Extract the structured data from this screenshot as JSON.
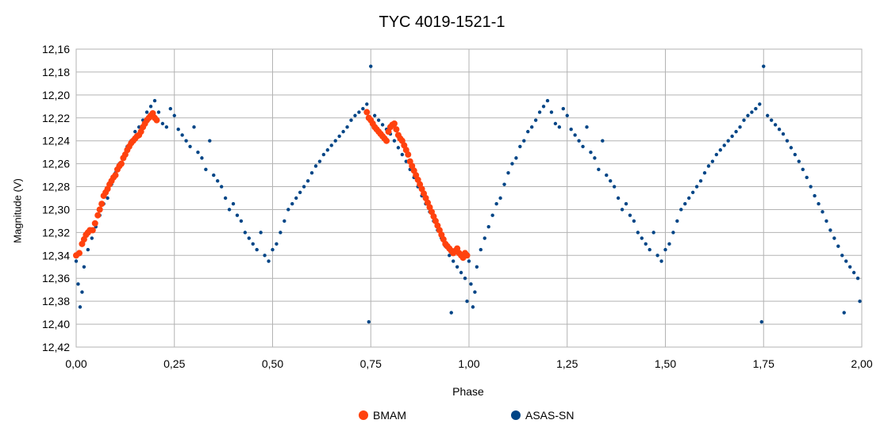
{
  "chart_data": {
    "type": "scatter",
    "title": "TYC 4019-1521-1",
    "xlabel": "Phase",
    "ylabel": "Magnitude (V)",
    "xlim": [
      0,
      2
    ],
    "ylim": [
      12.16,
      12.42
    ],
    "y_inverted": true,
    "grid": true,
    "legend_position": "bottom",
    "x_ticks": [
      "0,00",
      "0,25",
      "0,50",
      "0,75",
      "1,00",
      "1,25",
      "1,50",
      "1,75",
      "2,00"
    ],
    "y_ticks": [
      "12,16",
      "12,18",
      "12,20",
      "12,22",
      "12,24",
      "12,26",
      "12,28",
      "12,30",
      "12,32",
      "12,34",
      "12,36",
      "12,38",
      "12,40",
      "12,42"
    ],
    "colors": {
      "BMAM": "#ff420e",
      "ASAS-SN": "#004586"
    },
    "series": [
      {
        "name": "BMAM",
        "color": "#ff420e",
        "points": [
          [
            0.0,
            12.34
          ],
          [
            0.008,
            12.338
          ],
          [
            0.015,
            12.33
          ],
          [
            0.02,
            12.326
          ],
          [
            0.025,
            12.322
          ],
          [
            0.03,
            12.32
          ],
          [
            0.035,
            12.318
          ],
          [
            0.042,
            12.318
          ],
          [
            0.048,
            12.312
          ],
          [
            0.055,
            12.305
          ],
          [
            0.06,
            12.3
          ],
          [
            0.065,
            12.295
          ],
          [
            0.07,
            12.288
          ],
          [
            0.075,
            12.285
          ],
          [
            0.08,
            12.282
          ],
          [
            0.085,
            12.278
          ],
          [
            0.09,
            12.275
          ],
          [
            0.095,
            12.272
          ],
          [
            0.1,
            12.27
          ],
          [
            0.105,
            12.265
          ],
          [
            0.11,
            12.262
          ],
          [
            0.115,
            12.26
          ],
          [
            0.12,
            12.255
          ],
          [
            0.125,
            12.252
          ],
          [
            0.13,
            12.248
          ],
          [
            0.135,
            12.245
          ],
          [
            0.14,
            12.242
          ],
          [
            0.145,
            12.24
          ],
          [
            0.15,
            12.238
          ],
          [
            0.155,
            12.236
          ],
          [
            0.16,
            12.235
          ],
          [
            0.165,
            12.232
          ],
          [
            0.17,
            12.228
          ],
          [
            0.175,
            12.225
          ],
          [
            0.18,
            12.222
          ],
          [
            0.185,
            12.22
          ],
          [
            0.19,
            12.218
          ],
          [
            0.195,
            12.216
          ],
          [
            0.2,
            12.22
          ],
          [
            0.205,
            12.222
          ],
          [
            0.74,
            12.215
          ],
          [
            0.745,
            12.22
          ],
          [
            0.75,
            12.222
          ],
          [
            0.755,
            12.225
          ],
          [
            0.76,
            12.228
          ],
          [
            0.765,
            12.23
          ],
          [
            0.77,
            12.232
          ],
          [
            0.775,
            12.234
          ],
          [
            0.78,
            12.236
          ],
          [
            0.785,
            12.238
          ],
          [
            0.79,
            12.24
          ],
          [
            0.795,
            12.232
          ],
          [
            0.8,
            12.228
          ],
          [
            0.805,
            12.226
          ],
          [
            0.81,
            12.225
          ],
          [
            0.815,
            12.23
          ],
          [
            0.82,
            12.235
          ],
          [
            0.825,
            12.238
          ],
          [
            0.83,
            12.24
          ],
          [
            0.835,
            12.244
          ],
          [
            0.84,
            12.248
          ],
          [
            0.845,
            12.252
          ],
          [
            0.85,
            12.258
          ],
          [
            0.855,
            12.262
          ],
          [
            0.86,
            12.266
          ],
          [
            0.865,
            12.27
          ],
          [
            0.87,
            12.274
          ],
          [
            0.875,
            12.278
          ],
          [
            0.88,
            12.282
          ],
          [
            0.885,
            12.286
          ],
          [
            0.89,
            12.29
          ],
          [
            0.895,
            12.294
          ],
          [
            0.9,
            12.298
          ],
          [
            0.905,
            12.302
          ],
          [
            0.91,
            12.306
          ],
          [
            0.915,
            12.31
          ],
          [
            0.92,
            12.314
          ],
          [
            0.925,
            12.318
          ],
          [
            0.93,
            12.322
          ],
          [
            0.935,
            12.326
          ],
          [
            0.94,
            12.33
          ],
          [
            0.945,
            12.332
          ],
          [
            0.95,
            12.334
          ],
          [
            0.955,
            12.336
          ],
          [
            0.96,
            12.338
          ],
          [
            0.965,
            12.336
          ],
          [
            0.97,
            12.334
          ],
          [
            0.975,
            12.338
          ],
          [
            0.98,
            12.34
          ],
          [
            0.985,
            12.342
          ],
          [
            0.99,
            12.338
          ],
          [
            0.995,
            12.34
          ]
        ]
      },
      {
        "name": "ASAS-SN",
        "color": "#004586",
        "points": [
          [
            0.0,
            12.345
          ],
          [
            0.005,
            12.365
          ],
          [
            0.01,
            12.385
          ],
          [
            0.015,
            12.372
          ],
          [
            0.02,
            12.35
          ],
          [
            0.03,
            12.335
          ],
          [
            0.04,
            12.325
          ],
          [
            0.05,
            12.315
          ],
          [
            0.06,
            12.305
          ],
          [
            0.07,
            12.295
          ],
          [
            0.08,
            12.29
          ],
          [
            0.09,
            12.278
          ],
          [
            0.1,
            12.268
          ],
          [
            0.11,
            12.26
          ],
          [
            0.12,
            12.255
          ],
          [
            0.13,
            12.245
          ],
          [
            0.14,
            12.24
          ],
          [
            0.15,
            12.232
          ],
          [
            0.16,
            12.228
          ],
          [
            0.17,
            12.222
          ],
          [
            0.18,
            12.215
          ],
          [
            0.19,
            12.21
          ],
          [
            0.2,
            12.205
          ],
          [
            0.21,
            12.215
          ],
          [
            0.22,
            12.225
          ],
          [
            0.23,
            12.228
          ],
          [
            0.24,
            12.212
          ],
          [
            0.25,
            12.218
          ],
          [
            0.26,
            12.23
          ],
          [
            0.27,
            12.235
          ],
          [
            0.28,
            12.24
          ],
          [
            0.29,
            12.245
          ],
          [
            0.3,
            12.228
          ],
          [
            0.31,
            12.25
          ],
          [
            0.32,
            12.255
          ],
          [
            0.33,
            12.265
          ],
          [
            0.34,
            12.24
          ],
          [
            0.35,
            12.27
          ],
          [
            0.36,
            12.275
          ],
          [
            0.37,
            12.28
          ],
          [
            0.38,
            12.29
          ],
          [
            0.39,
            12.3
          ],
          [
            0.4,
            12.295
          ],
          [
            0.41,
            12.305
          ],
          [
            0.42,
            12.31
          ],
          [
            0.43,
            12.32
          ],
          [
            0.44,
            12.325
          ],
          [
            0.45,
            12.33
          ],
          [
            0.46,
            12.335
          ],
          [
            0.47,
            12.32
          ],
          [
            0.48,
            12.34
          ],
          [
            0.49,
            12.345
          ],
          [
            0.5,
            12.335
          ],
          [
            0.51,
            12.33
          ],
          [
            0.52,
            12.32
          ],
          [
            0.53,
            12.31
          ],
          [
            0.54,
            12.3
          ],
          [
            0.55,
            12.295
          ],
          [
            0.56,
            12.29
          ],
          [
            0.57,
            12.285
          ],
          [
            0.58,
            12.28
          ],
          [
            0.59,
            12.275
          ],
          [
            0.6,
            12.268
          ],
          [
            0.61,
            12.262
          ],
          [
            0.62,
            12.258
          ],
          [
            0.63,
            12.252
          ],
          [
            0.64,
            12.248
          ],
          [
            0.65,
            12.244
          ],
          [
            0.66,
            12.24
          ],
          [
            0.67,
            12.236
          ],
          [
            0.68,
            12.232
          ],
          [
            0.69,
            12.228
          ],
          [
            0.7,
            12.222
          ],
          [
            0.71,
            12.218
          ],
          [
            0.72,
            12.215
          ],
          [
            0.73,
            12.212
          ],
          [
            0.74,
            12.208
          ],
          [
            0.75,
            12.175
          ],
          [
            0.76,
            12.218
          ],
          [
            0.77,
            12.222
          ],
          [
            0.78,
            12.226
          ],
          [
            0.79,
            12.23
          ],
          [
            0.8,
            12.234
          ],
          [
            0.81,
            12.24
          ],
          [
            0.82,
            12.246
          ],
          [
            0.83,
            12.252
          ],
          [
            0.84,
            12.258
          ],
          [
            0.85,
            12.265
          ],
          [
            0.86,
            12.272
          ],
          [
            0.87,
            12.28
          ],
          [
            0.88,
            12.288
          ],
          [
            0.89,
            12.295
          ],
          [
            0.9,
            12.302
          ],
          [
            0.91,
            12.31
          ],
          [
            0.92,
            12.318
          ],
          [
            0.93,
            12.325
          ],
          [
            0.94,
            12.332
          ],
          [
            0.95,
            12.34
          ],
          [
            0.96,
            12.345
          ],
          [
            0.97,
            12.35
          ],
          [
            0.98,
            12.355
          ],
          [
            0.99,
            12.36
          ],
          [
            0.955,
            12.39
          ],
          [
            0.745,
            12.398
          ],
          [
            0.995,
            12.38
          ],
          [
            1.0,
            12.345
          ],
          [
            1.005,
            12.365
          ],
          [
            1.01,
            12.385
          ],
          [
            1.015,
            12.372
          ],
          [
            1.02,
            12.35
          ],
          [
            1.03,
            12.335
          ],
          [
            1.04,
            12.325
          ],
          [
            1.05,
            12.315
          ],
          [
            1.06,
            12.305
          ],
          [
            1.07,
            12.295
          ],
          [
            1.08,
            12.29
          ],
          [
            1.09,
            12.278
          ],
          [
            1.1,
            12.268
          ],
          [
            1.11,
            12.26
          ],
          [
            1.12,
            12.255
          ],
          [
            1.13,
            12.245
          ],
          [
            1.14,
            12.24
          ],
          [
            1.15,
            12.232
          ],
          [
            1.16,
            12.228
          ],
          [
            1.17,
            12.222
          ],
          [
            1.18,
            12.215
          ],
          [
            1.19,
            12.21
          ],
          [
            1.2,
            12.205
          ],
          [
            1.21,
            12.215
          ],
          [
            1.22,
            12.225
          ],
          [
            1.23,
            12.228
          ],
          [
            1.24,
            12.212
          ],
          [
            1.25,
            12.218
          ],
          [
            1.26,
            12.23
          ],
          [
            1.27,
            12.235
          ],
          [
            1.28,
            12.24
          ],
          [
            1.29,
            12.245
          ],
          [
            1.3,
            12.228
          ],
          [
            1.31,
            12.25
          ],
          [
            1.32,
            12.255
          ],
          [
            1.33,
            12.265
          ],
          [
            1.34,
            12.24
          ],
          [
            1.35,
            12.27
          ],
          [
            1.36,
            12.275
          ],
          [
            1.37,
            12.28
          ],
          [
            1.38,
            12.29
          ],
          [
            1.39,
            12.3
          ],
          [
            1.4,
            12.295
          ],
          [
            1.41,
            12.305
          ],
          [
            1.42,
            12.31
          ],
          [
            1.43,
            12.32
          ],
          [
            1.44,
            12.325
          ],
          [
            1.45,
            12.33
          ],
          [
            1.46,
            12.335
          ],
          [
            1.47,
            12.32
          ],
          [
            1.48,
            12.34
          ],
          [
            1.49,
            12.345
          ],
          [
            1.5,
            12.335
          ],
          [
            1.51,
            12.33
          ],
          [
            1.52,
            12.32
          ],
          [
            1.53,
            12.31
          ],
          [
            1.54,
            12.3
          ],
          [
            1.55,
            12.295
          ],
          [
            1.56,
            12.29
          ],
          [
            1.57,
            12.285
          ],
          [
            1.58,
            12.28
          ],
          [
            1.59,
            12.275
          ],
          [
            1.6,
            12.268
          ],
          [
            1.61,
            12.262
          ],
          [
            1.62,
            12.258
          ],
          [
            1.63,
            12.252
          ],
          [
            1.64,
            12.248
          ],
          [
            1.65,
            12.244
          ],
          [
            1.66,
            12.24
          ],
          [
            1.67,
            12.236
          ],
          [
            1.68,
            12.232
          ],
          [
            1.69,
            12.228
          ],
          [
            1.7,
            12.222
          ],
          [
            1.71,
            12.218
          ],
          [
            1.72,
            12.215
          ],
          [
            1.73,
            12.212
          ],
          [
            1.74,
            12.208
          ],
          [
            1.75,
            12.175
          ],
          [
            1.76,
            12.218
          ],
          [
            1.77,
            12.222
          ],
          [
            1.78,
            12.226
          ],
          [
            1.79,
            12.23
          ],
          [
            1.8,
            12.234
          ],
          [
            1.81,
            12.24
          ],
          [
            1.82,
            12.246
          ],
          [
            1.83,
            12.252
          ],
          [
            1.84,
            12.258
          ],
          [
            1.85,
            12.265
          ],
          [
            1.86,
            12.272
          ],
          [
            1.87,
            12.28
          ],
          [
            1.88,
            12.288
          ],
          [
            1.89,
            12.295
          ],
          [
            1.9,
            12.302
          ],
          [
            1.91,
            12.31
          ],
          [
            1.92,
            12.318
          ],
          [
            1.93,
            12.325
          ],
          [
            1.94,
            12.332
          ],
          [
            1.95,
            12.34
          ],
          [
            1.96,
            12.345
          ],
          [
            1.97,
            12.35
          ],
          [
            1.98,
            12.355
          ],
          [
            1.99,
            12.36
          ],
          [
            1.955,
            12.39
          ],
          [
            1.745,
            12.398
          ],
          [
            1.995,
            12.38
          ]
        ]
      }
    ]
  }
}
